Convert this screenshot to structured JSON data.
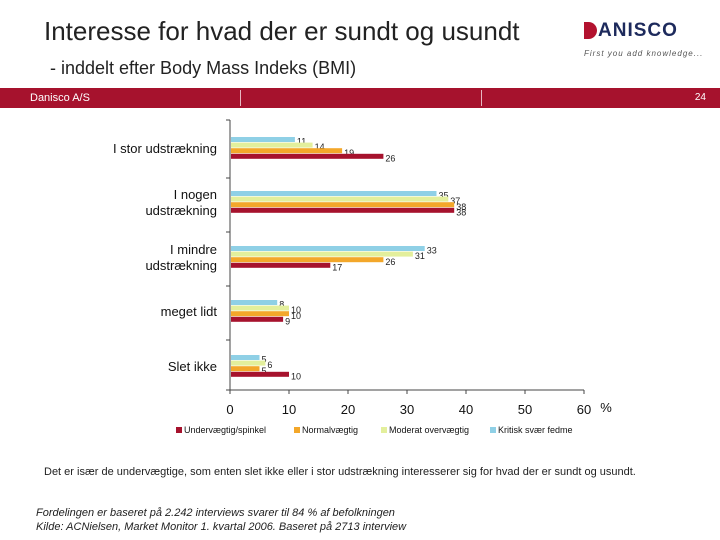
{
  "header": {
    "title": "Interesse for hvad der er sundt og usundt",
    "subtitle": "- inddelt efter Body Mass Indeks (BMI)"
  },
  "logo": {
    "text": "ANISCO",
    "tagline": "First you add knowledge..."
  },
  "strip": {
    "company": "Danisco A/S",
    "page": "24",
    "color": "#a6122d"
  },
  "chart_data": {
    "type": "bar",
    "orientation": "horizontal",
    "categories": [
      [
        "I stor udstrækning"
      ],
      [
        "I nogen",
        "udstrækning"
      ],
      [
        "I mindre",
        "udstrækning"
      ],
      [
        "meget lidt"
      ],
      [
        "Slet ikke"
      ]
    ],
    "series": [
      {
        "name": "Kritisk svær fedme",
        "color": "#8fd0e6",
        "values": [
          11,
          35,
          33,
          8,
          5
        ]
      },
      {
        "name": "Moderat overvægtig",
        "color": "#e3ef9c",
        "values": [
          14,
          37,
          31,
          10,
          6
        ]
      },
      {
        "name": "Normalvægtig",
        "color": "#f3a72a",
        "values": [
          19,
          38,
          26,
          10,
          5
        ]
      },
      {
        "name": "Undervægtig/spinkel",
        "color": "#a6122d",
        "values": [
          26,
          38,
          17,
          9,
          10
        ]
      }
    ],
    "legend_order": [
      "Undervægtig/spinkel",
      "Normalvægtig",
      "Moderat overvægtig",
      "Kritisk svær fedme"
    ],
    "xlim": [
      0,
      60
    ],
    "xticks": [
      0,
      10,
      20,
      30,
      40,
      50,
      60
    ],
    "unit_label": "%",
    "legend_position": "bottom"
  },
  "note": "Det er især de undervægtige, som enten slet ikke eller i stor udstrækning interesserer sig for hvad der er sundt og usundt.",
  "footnotes": [
    "Fordelingen er baseret på 2.242 interviews svarer til 84 % af befolkningen",
    "Kilde: ACNielsen, Market Monitor 1. kvartal 2006. Baseret på 2713 interview"
  ]
}
